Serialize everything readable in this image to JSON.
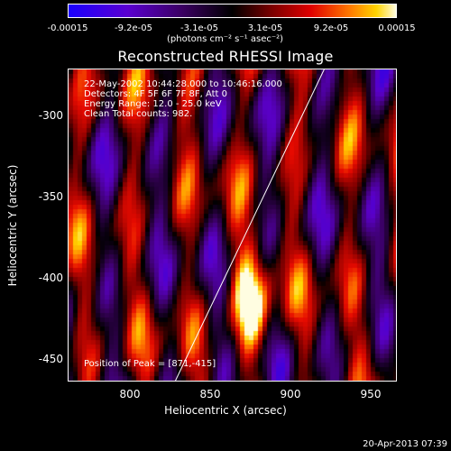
{
  "colorbar": {
    "ticks": [
      "-0.00015",
      "-9.2e-05",
      "-3.1e-05",
      "3.1e-05",
      "9.2e-05",
      "0.00015"
    ],
    "units": "(photons cm⁻² s⁻¹ asec⁻²)"
  },
  "title": "Reconstructed RHESSI Image",
  "annotations": {
    "time": "22-May-2002 10:44:28.000 to 10:46:16.000",
    "detectors": "Detectors: 4F 5F 6F 7F 8F, Att 0",
    "energy": "Energy Range: 12.0 - 25.0 keV",
    "method": "Clean    Total counts: 982.",
    "peak": "Position of Peak = [871,-415]"
  },
  "axes": {
    "xlabel": "Heliocentric X (arcsec)",
    "ylabel": "Heliocentric Y (arcsec)",
    "xticks": [
      "800",
      "850",
      "900",
      "950"
    ],
    "yticks": [
      "-300",
      "-350",
      "-400",
      "-450"
    ]
  },
  "timestamp": "20-Apr-2013 07:39",
  "chart_data": {
    "type": "heatmap",
    "title": "Reconstructed RHESSI Image",
    "xlabel": "Heliocentric X (arcsec)",
    "ylabel": "Heliocentric Y (arcsec)",
    "xlim": [
      762,
      958
    ],
    "ylim": [
      -463,
      -278
    ],
    "colorbar_range": [
      -0.00015,
      0.00015
    ],
    "peak": {
      "x": 871,
      "y": -415
    },
    "limb_line": [
      [
        826,
        -463
      ],
      [
        915,
        -278
      ]
    ]
  }
}
